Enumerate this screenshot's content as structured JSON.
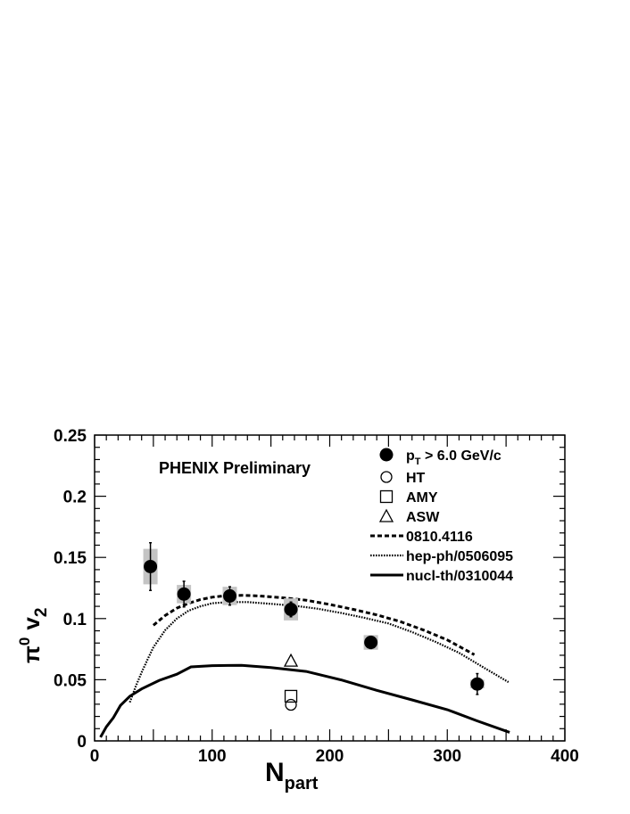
{
  "chart_data": {
    "type": "scatter",
    "title": "PHENIX Preliminary",
    "xlabel": {
      "main": "N",
      "sub": "part"
    },
    "ylabel": {
      "main": "π",
      "sup": "0",
      "var": "v",
      "sub": "2"
    },
    "xlim": [
      0,
      400
    ],
    "ylim": [
      0,
      0.25
    ],
    "x_ticks": [
      "0",
      "100",
      "200",
      "300",
      "400"
    ],
    "y_ticks": [
      "0",
      "0.05",
      "0.1",
      "0.15",
      "0.2",
      "0.25"
    ],
    "grid": false,
    "legend_position": "top-right",
    "series": [
      {
        "name": "p_T > 6.0 GeV/c",
        "legend_main": "p",
        "legend_sub": "T",
        "legend_rest": " > 6.0 GeV/c",
        "marker": "filled-circle",
        "points": [
          {
            "x": 47.5,
            "y": 0.1425,
            "stat_err": 0.0195,
            "sys_err": 0.0145
          },
          {
            "x": 76.0,
            "y": 0.12,
            "stat_err": 0.0105,
            "sys_err": 0.0075
          },
          {
            "x": 115.0,
            "y": 0.1185,
            "stat_err": 0.0075,
            "sys_err": 0.0075
          },
          {
            "x": 167.0,
            "y": 0.1075,
            "stat_err": 0.006,
            "sys_err": 0.009
          },
          {
            "x": 235.0,
            "y": 0.0805,
            "stat_err": 0.005,
            "sys_err": 0.006
          },
          {
            "x": 325.5,
            "y": 0.0465,
            "stat_err": 0.0085,
            "sys_err": 0.0035
          }
        ]
      },
      {
        "name": "HT",
        "marker": "open-circle",
        "points": [
          {
            "x": 167.0,
            "y": 0.0295
          }
        ]
      },
      {
        "name": "AMY",
        "marker": "open-square",
        "points": [
          {
            "x": 167.0,
            "y": 0.0365
          }
        ]
      },
      {
        "name": "ASW",
        "marker": "open-triangle",
        "points": [
          {
            "x": 167.0,
            "y": 0.0655
          }
        ]
      },
      {
        "name": "0810.4116",
        "line": "dashed",
        "points": [
          {
            "x": 50,
            "y": 0.0945
          },
          {
            "x": 60,
            "y": 0.1025
          },
          {
            "x": 70,
            "y": 0.1085
          },
          {
            "x": 80,
            "y": 0.1125
          },
          {
            "x": 90,
            "y": 0.1155
          },
          {
            "x": 100,
            "y": 0.1175
          },
          {
            "x": 110,
            "y": 0.1185
          },
          {
            "x": 125,
            "y": 0.119
          },
          {
            "x": 140,
            "y": 0.1185
          },
          {
            "x": 160,
            "y": 0.117
          },
          {
            "x": 180,
            "y": 0.115
          },
          {
            "x": 200,
            "y": 0.1115
          },
          {
            "x": 220,
            "y": 0.1075
          },
          {
            "x": 240,
            "y": 0.103
          },
          {
            "x": 260,
            "y": 0.0975
          },
          {
            "x": 280,
            "y": 0.0905
          },
          {
            "x": 300,
            "y": 0.0825
          },
          {
            "x": 323,
            "y": 0.0705
          }
        ]
      },
      {
        "name": "hep-ph/0506095",
        "line": "dotted",
        "points": [
          {
            "x": 30,
            "y": 0.0315
          },
          {
            "x": 35,
            "y": 0.0445
          },
          {
            "x": 40,
            "y": 0.056
          },
          {
            "x": 45,
            "y": 0.0665
          },
          {
            "x": 50,
            "y": 0.0765
          },
          {
            "x": 60,
            "y": 0.0905
          },
          {
            "x": 70,
            "y": 0.1
          },
          {
            "x": 80,
            "y": 0.1065
          },
          {
            "x": 90,
            "y": 0.11
          },
          {
            "x": 100,
            "y": 0.1125
          },
          {
            "x": 115,
            "y": 0.1135
          },
          {
            "x": 130,
            "y": 0.1135
          },
          {
            "x": 150,
            "y": 0.112
          },
          {
            "x": 170,
            "y": 0.1105
          },
          {
            "x": 190,
            "y": 0.108
          },
          {
            "x": 210,
            "y": 0.1045
          },
          {
            "x": 230,
            "y": 0.1005
          },
          {
            "x": 250,
            "y": 0.096
          },
          {
            "x": 270,
            "y": 0.089
          },
          {
            "x": 290,
            "y": 0.081
          },
          {
            "x": 310,
            "y": 0.072
          },
          {
            "x": 330,
            "y": 0.0605
          },
          {
            "x": 352,
            "y": 0.048
          }
        ]
      },
      {
        "name": "nucl-th/0310044",
        "line": "solid",
        "points": [
          {
            "x": 5,
            "y": 0.003
          },
          {
            "x": 10,
            "y": 0.0115
          },
          {
            "x": 16,
            "y": 0.019
          },
          {
            "x": 22,
            "y": 0.029
          },
          {
            "x": 30,
            "y": 0.0365
          },
          {
            "x": 40,
            "y": 0.0425
          },
          {
            "x": 55,
            "y": 0.0495
          },
          {
            "x": 70,
            "y": 0.0545
          },
          {
            "x": 82,
            "y": 0.0605
          },
          {
            "x": 100,
            "y": 0.0615
          },
          {
            "x": 125,
            "y": 0.0618
          },
          {
            "x": 150,
            "y": 0.06
          },
          {
            "x": 180,
            "y": 0.0568
          },
          {
            "x": 210,
            "y": 0.0498
          },
          {
            "x": 240,
            "y": 0.0413
          },
          {
            "x": 270,
            "y": 0.0335
          },
          {
            "x": 300,
            "y": 0.0255
          },
          {
            "x": 325,
            "y": 0.0165
          },
          {
            "x": 353,
            "y": 0.007
          }
        ]
      }
    ]
  }
}
